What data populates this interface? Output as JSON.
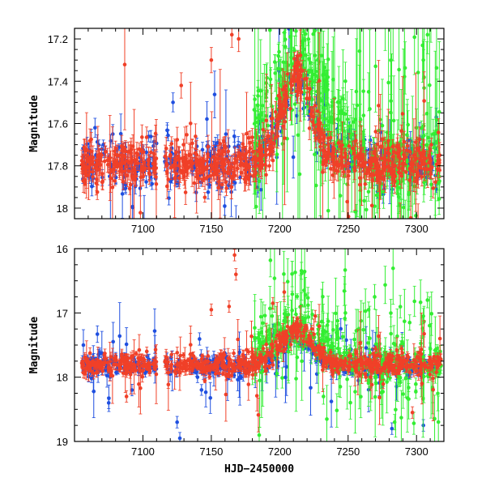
{
  "chart_data": [
    {
      "type": "scatter",
      "panel": "top",
      "title": "",
      "xlabel": "",
      "ylabel": "Magnitude",
      "xlim": [
        7050,
        7320
      ],
      "ylim": [
        18.05,
        17.15
      ],
      "y_inverted": true,
      "x_ticks": [
        7100,
        7150,
        7200,
        7250,
        7300
      ],
      "y_ticks": [
        "17.2",
        "17.4",
        "17.6",
        "17.8",
        "18"
      ],
      "y_tick_values": [
        17.2,
        17.4,
        17.6,
        17.8,
        18.0
      ],
      "series": [
        {
          "name": "blue band",
          "color": "#1f4fe0",
          "baseline": 17.79,
          "start": 7055,
          "end": 7315,
          "gaps": [
            [
              7110,
              7116
            ],
            [
              7128,
              7134
            ]
          ],
          "peak_t": 7212,
          "peak_mag": 17.4,
          "peak_width": 18,
          "scatter": 0.06,
          "err": 0.03,
          "outlier_rate": 0.05,
          "count": 520,
          "notable_points": [
            [
              7122,
              17.5
            ],
            [
              7065,
              17.62
            ],
            [
              7078,
              17.65
            ],
            [
              7185,
              17.6
            ]
          ]
        },
        {
          "name": "green band",
          "color": "#33ee33",
          "baseline": 17.78,
          "start": 7180,
          "end": 7318,
          "gaps": [],
          "peak_t": 7212,
          "peak_mag": 17.3,
          "peak_width": 30,
          "scatter": 0.09,
          "err": 0.06,
          "outlier_rate": 0.3,
          "count": 420,
          "notable_points": [
            [
              7265,
              17.45
            ],
            [
              7305,
              17.3
            ],
            [
              7308,
              17.18
            ],
            [
              7248,
              17.4
            ]
          ]
        },
        {
          "name": "red band",
          "color": "#f04028",
          "baseline": 17.79,
          "start": 7055,
          "end": 7318,
          "gaps": [
            [
              7110,
              7116
            ]
          ],
          "peak_t": 7212,
          "peak_mag": 17.38,
          "peak_width": 16,
          "scatter": 0.05,
          "err": 0.04,
          "outlier_rate": 0.08,
          "count": 760,
          "notable_points": [
            [
              7128,
              17.42
            ],
            [
              7150,
              17.3
            ],
            [
              7165,
              17.18
            ],
            [
              7170,
              17.2
            ]
          ]
        }
      ]
    },
    {
      "type": "scatter",
      "panel": "bottom",
      "title": "",
      "xlabel": "HJD−2450000",
      "ylabel": "Magnitude",
      "xlim": [
        7050,
        7320
      ],
      "ylim": [
        19,
        16
      ],
      "y_inverted": true,
      "x_ticks": [
        7100,
        7150,
        7200,
        7250,
        7300
      ],
      "y_ticks": [
        "16",
        "17",
        "18",
        "19"
      ],
      "y_tick_values": [
        16,
        17,
        18,
        19
      ],
      "series": [
        {
          "name": "blue band",
          "color": "#1f4fe0",
          "baseline": 17.82,
          "start": 7055,
          "end": 7315,
          "gaps": [
            [
              7110,
              7116
            ],
            [
              7128,
              7134
            ]
          ],
          "peak_t": 7212,
          "peak_mag": 17.45,
          "peak_width": 18,
          "scatter": 0.08,
          "err": 0.06,
          "outlier_rate": 0.12,
          "count": 520,
          "notable_points": [
            [
              7075,
              18.4
            ],
            [
              7125,
              18.7
            ],
            [
              7127,
              18.95
            ],
            [
              7282,
              18.8
            ],
            [
              7305,
              18.75
            ],
            [
              7092,
              18.2
            ]
          ]
        },
        {
          "name": "green band",
          "color": "#33ee33",
          "baseline": 17.8,
          "start": 7180,
          "end": 7318,
          "gaps": [],
          "peak_t": 7212,
          "peak_mag": 17.25,
          "peak_width": 30,
          "scatter": 0.15,
          "err": 0.08,
          "outlier_rate": 0.3,
          "count": 420,
          "notable_points": [
            [
              7185,
              18.9
            ],
            [
              7232,
              18.3
            ],
            [
              7248,
              17.0
            ],
            [
              7265,
              16.95
            ],
            [
              7295,
              17.15
            ],
            [
              7305,
              17.05
            ],
            [
              7308,
              16.8
            ],
            [
              7284,
              18.7
            ]
          ]
        },
        {
          "name": "red band",
          "color": "#f04028",
          "baseline": 17.8,
          "start": 7055,
          "end": 7318,
          "gaps": [
            [
              7110,
              7116
            ]
          ],
          "peak_t": 7212,
          "peak_mag": 17.25,
          "peak_width": 16,
          "scatter": 0.08,
          "err": 0.06,
          "outlier_rate": 0.1,
          "count": 760,
          "notable_points": [
            [
              7167,
              16.1
            ],
            [
              7168,
              16.4
            ],
            [
              7163,
              16.9
            ],
            [
              7150,
              16.95
            ],
            [
              7195,
              16.85
            ],
            [
              7226,
              17.05
            ],
            [
              7297,
              18.55
            ],
            [
              7088,
              18.3
            ]
          ]
        }
      ]
    }
  ]
}
